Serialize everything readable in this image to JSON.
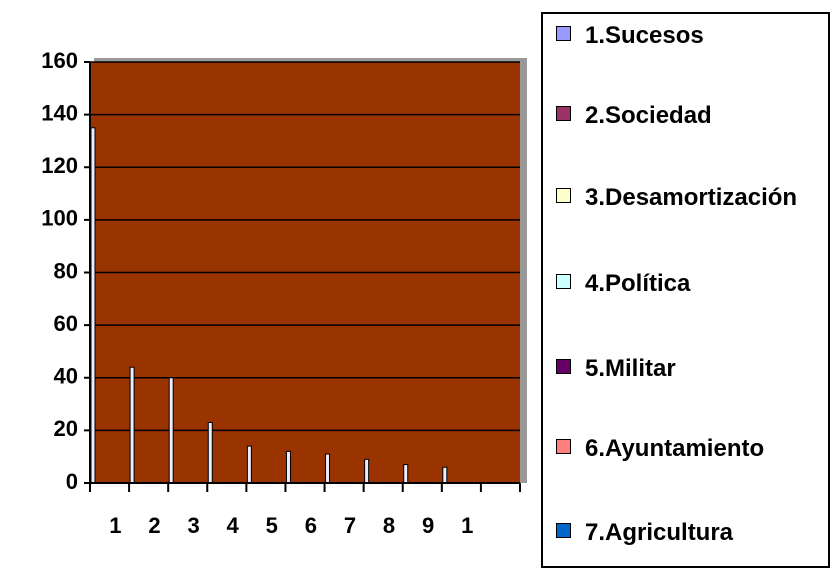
{
  "chart_data": {
    "type": "bar",
    "categories": [
      "1",
      "2",
      "3",
      "4",
      "5",
      "6",
      "7",
      "8",
      "9",
      "1",
      null
    ],
    "values": [
      135,
      44,
      40,
      23,
      14,
      12,
      11,
      9,
      7,
      6,
      null
    ],
    "color": "#ececff",
    "plot_color": "#993300",
    "ylim": [
      0,
      160
    ],
    "yticks": [
      0,
      20,
      40,
      60,
      80,
      100,
      120,
      140,
      160
    ],
    "grid": true,
    "legend": [
      {
        "name": "1.Sucesos",
        "color": "#9999ff"
      },
      {
        "name": "2.Sociedad",
        "color": "#993366"
      },
      {
        "name": "3.Desamortización",
        "color": "#ffffcc"
      },
      {
        "name": "4.Política",
        "color": "#ccffff"
      },
      {
        "name": "5.Militar",
        "color": "#660066"
      },
      {
        "name": "6.Ayuntamiento",
        "color": "#ff8080"
      },
      {
        "name": "7.Agricultura",
        "color": "#0066cc"
      }
    ]
  }
}
